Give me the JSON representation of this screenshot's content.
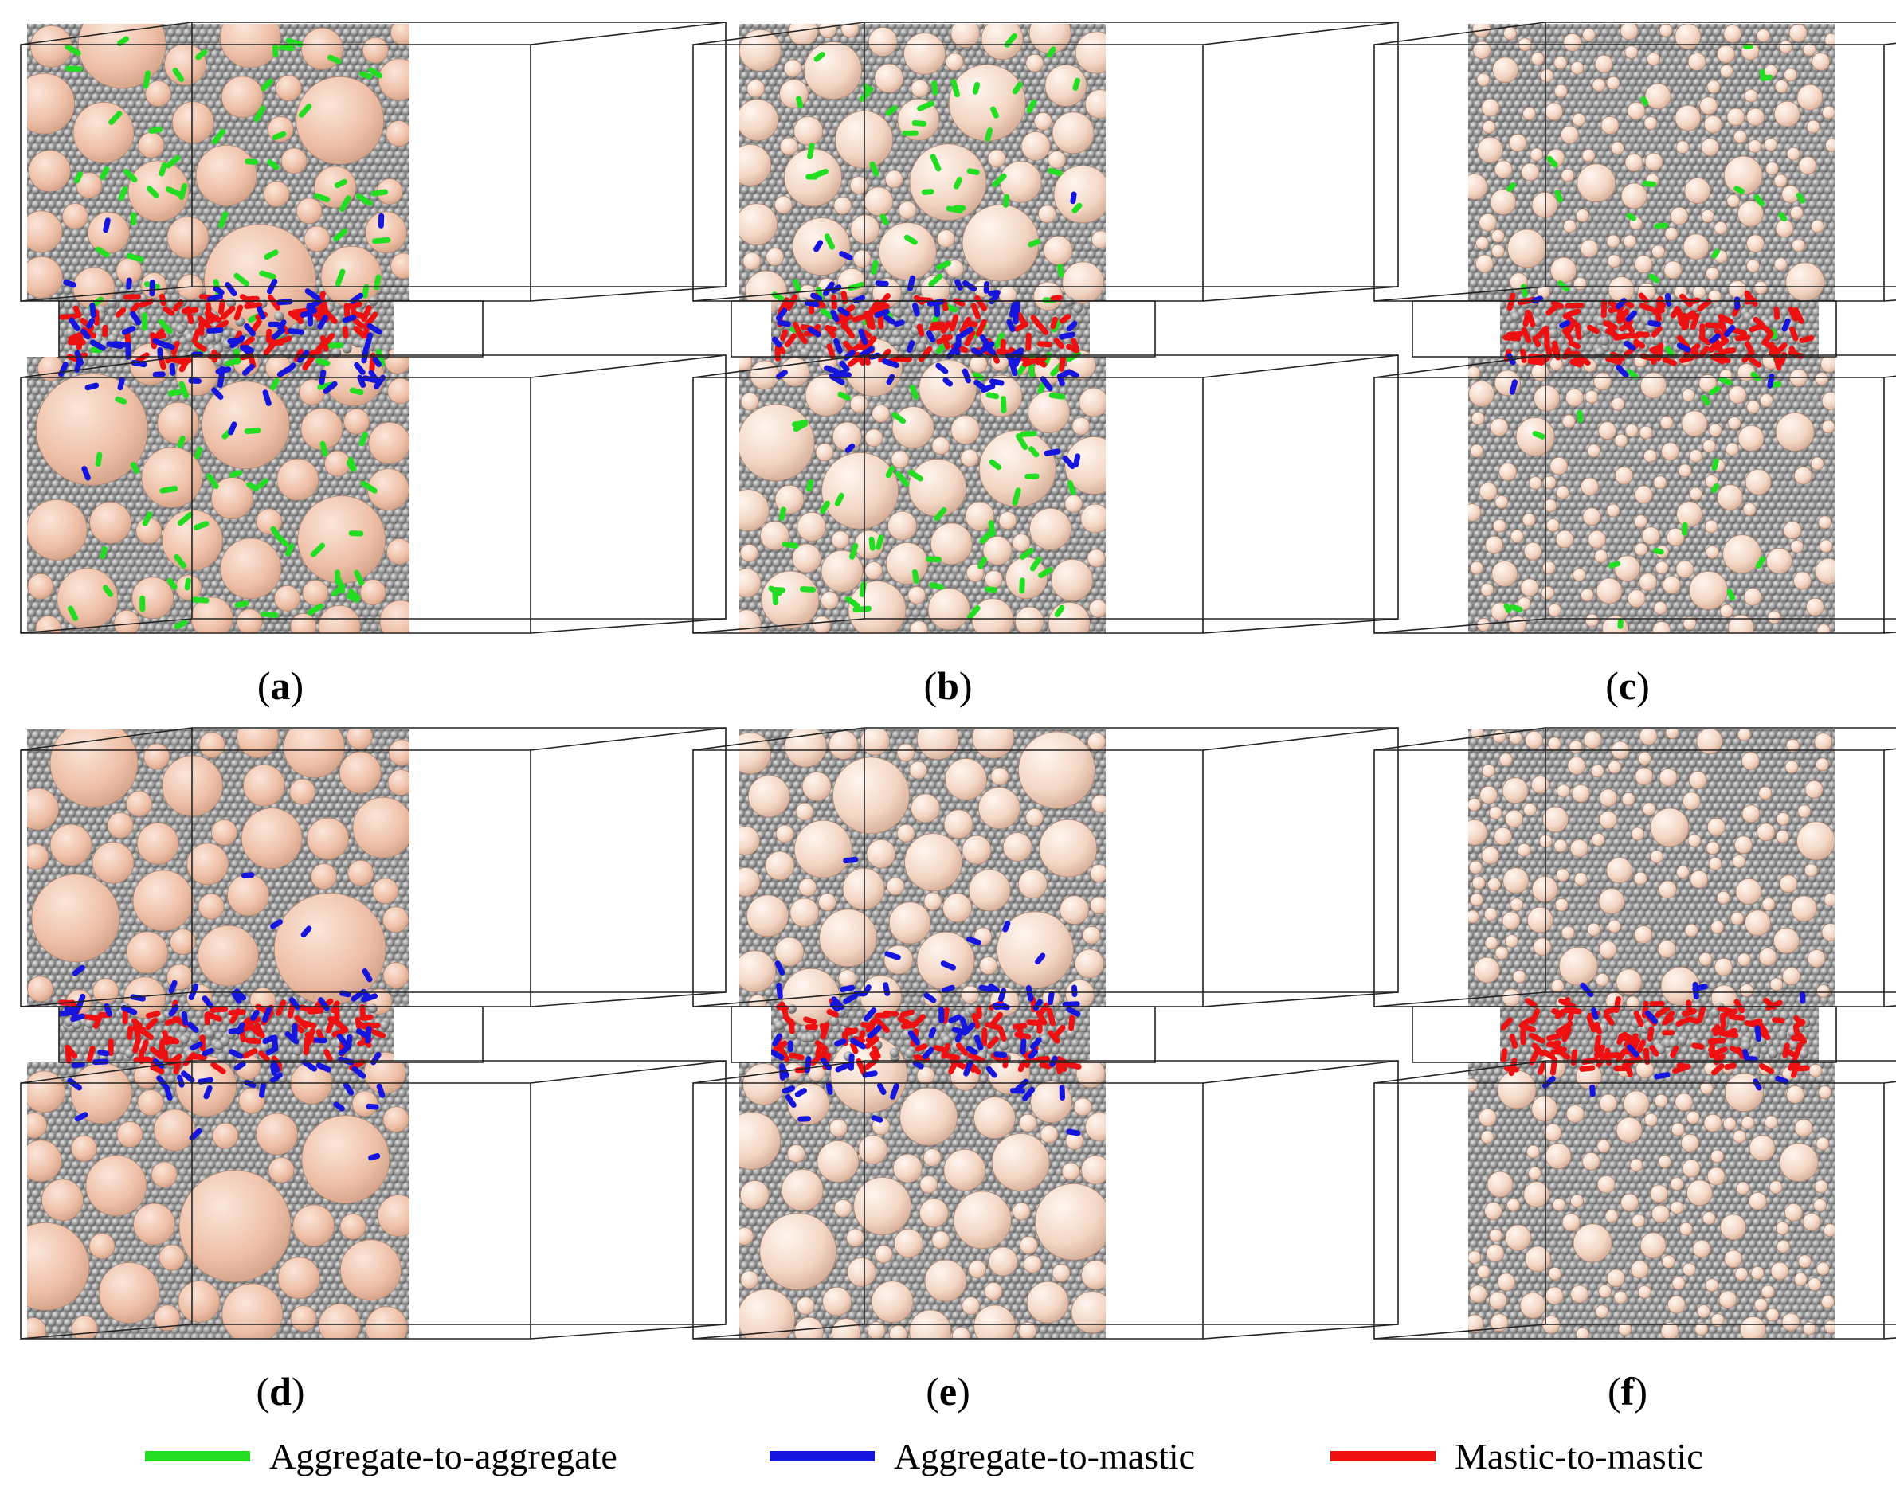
{
  "panels": [
    {
      "label": "a",
      "aggregate": "large",
      "bonds": [
        "aggregate-to-aggregate",
        "aggregate-to-mastic",
        "mastic-to-mastic"
      ]
    },
    {
      "label": "b",
      "aggregate": "medium",
      "bonds": [
        "aggregate-to-aggregate",
        "aggregate-to-mastic",
        "mastic-to-mastic"
      ]
    },
    {
      "label": "c",
      "aggregate": "small",
      "bonds": [
        "aggregate-to-aggregate",
        "aggregate-to-mastic",
        "mastic-to-mastic"
      ]
    },
    {
      "label": "d",
      "aggregate": "large",
      "bonds": [
        "aggregate-to-mastic",
        "mastic-to-mastic"
      ]
    },
    {
      "label": "e",
      "aggregate": "medium",
      "bonds": [
        "aggregate-to-mastic",
        "mastic-to-mastic"
      ]
    },
    {
      "label": "f",
      "aggregate": "small",
      "bonds": [
        "aggregate-to-mastic",
        "mastic-to-mastic"
      ]
    }
  ],
  "legend": [
    {
      "label": "Aggregate-to-aggregate",
      "color": "#22dd22"
    },
    {
      "label": "Aggregate-to-mastic",
      "color": "#1515dd"
    },
    {
      "label": "Mastic-to-mastic",
      "color": "#ee1111"
    }
  ],
  "colors": {
    "aggregate": "#f2c7b0",
    "mastic": "#9a9a9a",
    "box_edge": "#222222"
  }
}
